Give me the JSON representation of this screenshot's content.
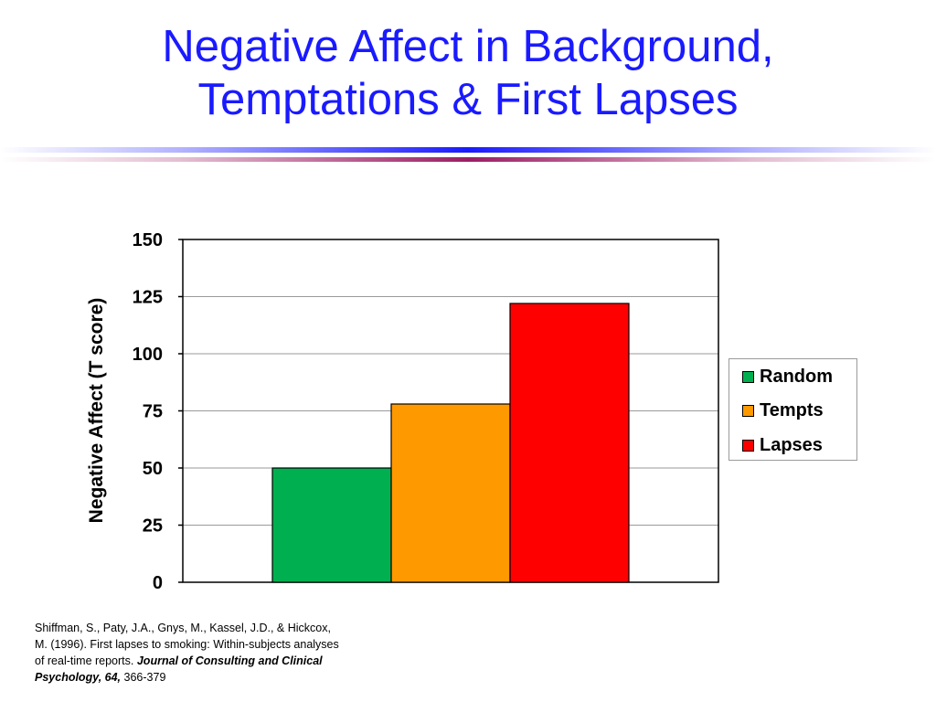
{
  "slide": {
    "title_line1": "Negative Affect in Background,",
    "title_line2": "Temptations & First Lapses"
  },
  "colors": {
    "title": "#1a1aff",
    "random": "#00b050",
    "tempts": "#ff9900",
    "lapses": "#ff0000"
  },
  "chart_data": {
    "type": "bar",
    "categories": [
      "Random",
      "Tempts",
      "Lapses"
    ],
    "values": [
      50,
      78,
      122
    ],
    "ylabel": "Negative Affect (T score)",
    "xlabel": "",
    "ylim": [
      0,
      150
    ],
    "yticks": [
      "0",
      "25",
      "50",
      "75",
      "100",
      "125",
      "150"
    ],
    "grid": true,
    "legend_position": "right"
  },
  "legend": {
    "items": [
      {
        "label": "Random"
      },
      {
        "label": "Tempts"
      },
      {
        "label": "Lapses"
      }
    ]
  },
  "citation": {
    "authors": "Shiffman, S., Paty, J.A., Gnys, M., Kassel, J.D., & Hickcox, M. (1996). First lapses to smoking: Within-subjects analyses of real-time reports.",
    "journal": "Journal of Consulting and Clinical Psychology, 64,",
    "pages": "366-379"
  }
}
